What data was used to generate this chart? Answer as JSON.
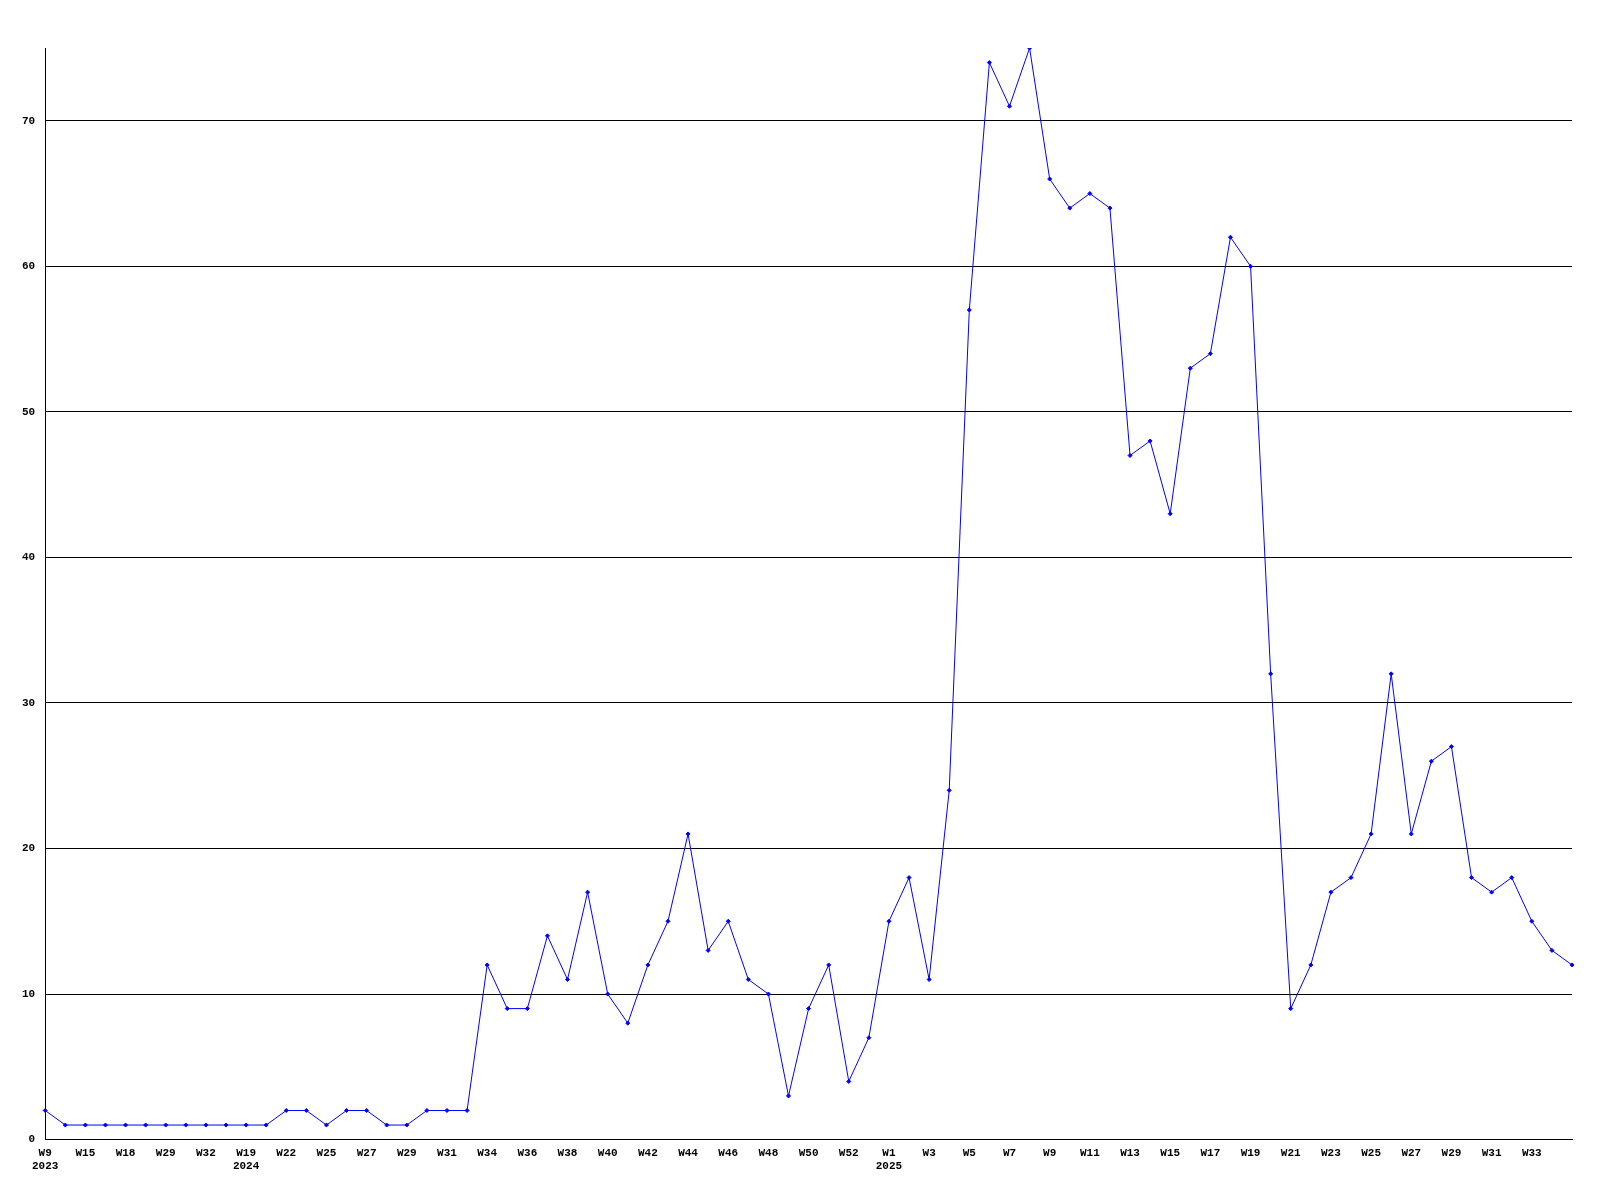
{
  "chart_data": {
    "type": "line",
    "categories": [
      "W9\n2023",
      null,
      "W15",
      null,
      "W18",
      null,
      "W29",
      null,
      "W32",
      null,
      "W19\n2024",
      null,
      "W22",
      null,
      "W25",
      null,
      "W27",
      null,
      "W29",
      null,
      "W31",
      null,
      "W34",
      null,
      "W36",
      null,
      "W38",
      null,
      "W40",
      null,
      "W42",
      null,
      "W44",
      null,
      "W46",
      null,
      "W48",
      null,
      "W50",
      null,
      "W52",
      null,
      "W1\n2025",
      null,
      "W3",
      null,
      "W5",
      null,
      "W7",
      null,
      "W9",
      null,
      "W11",
      null,
      "W13",
      null,
      "W15",
      null,
      "W17",
      null,
      "W19",
      null,
      "W21",
      null,
      "W23",
      null,
      "W25",
      null,
      "W27",
      null,
      "W29",
      null,
      "W31",
      null,
      "W33",
      null,
      null
    ],
    "series": [
      {
        "color": "#0000ff",
        "values": [
          2,
          1,
          1,
          1,
          1,
          1,
          1,
          1,
          1,
          1,
          1,
          1,
          2,
          2,
          1,
          2,
          2,
          1,
          1,
          2,
          2,
          2,
          12,
          9,
          9,
          14,
          11,
          17,
          10,
          8,
          12,
          15,
          21,
          13,
          15,
          11,
          10,
          3,
          9,
          12,
          4,
          7,
          15,
          18,
          11,
          24,
          57,
          74,
          71,
          75,
          66,
          64,
          65,
          64,
          47,
          48,
          43,
          53,
          54,
          62,
          60,
          32,
          9,
          12,
          17,
          18,
          21,
          32,
          21,
          26,
          27,
          18,
          17,
          18,
          15,
          13,
          12
        ]
      }
    ],
    "ylim": [
      0,
      75
    ],
    "yticks": [
      0,
      10,
      20,
      30,
      40,
      50,
      60,
      70
    ],
    "grid": "y",
    "legend": false,
    "marker": "diamond",
    "line_style": "solid"
  }
}
